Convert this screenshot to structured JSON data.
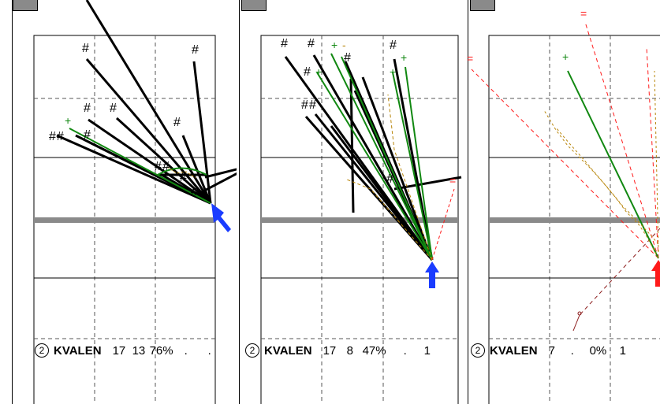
{
  "colors": {
    "accent_black": "#000000",
    "accent_green": "#118811",
    "accent_blue": "#1a3cff",
    "accent_red": "#ff1a1a",
    "accent_brown": "#b8860b",
    "band_gray": "#8a8a8a"
  },
  "marks": {
    "hash": "#",
    "plus": "+",
    "minus": "-",
    "equals": "="
  },
  "panels": [
    {
      "number": "2",
      "name": "KVALEN",
      "values": [
        "17",
        "13",
        "76%",
        ".",
        "."
      ],
      "arrow": "blue-up-left-arrow"
    },
    {
      "number": "2",
      "name": "KVALEN",
      "values": [
        "17",
        "8",
        "47%",
        ".",
        "1"
      ],
      "arrow": "blue-up-arrow"
    },
    {
      "number": "2",
      "name": "KVALEN",
      "values": [
        "7",
        ".",
        "0%",
        "1"
      ],
      "arrow": "red-up-arrow"
    }
  ]
}
